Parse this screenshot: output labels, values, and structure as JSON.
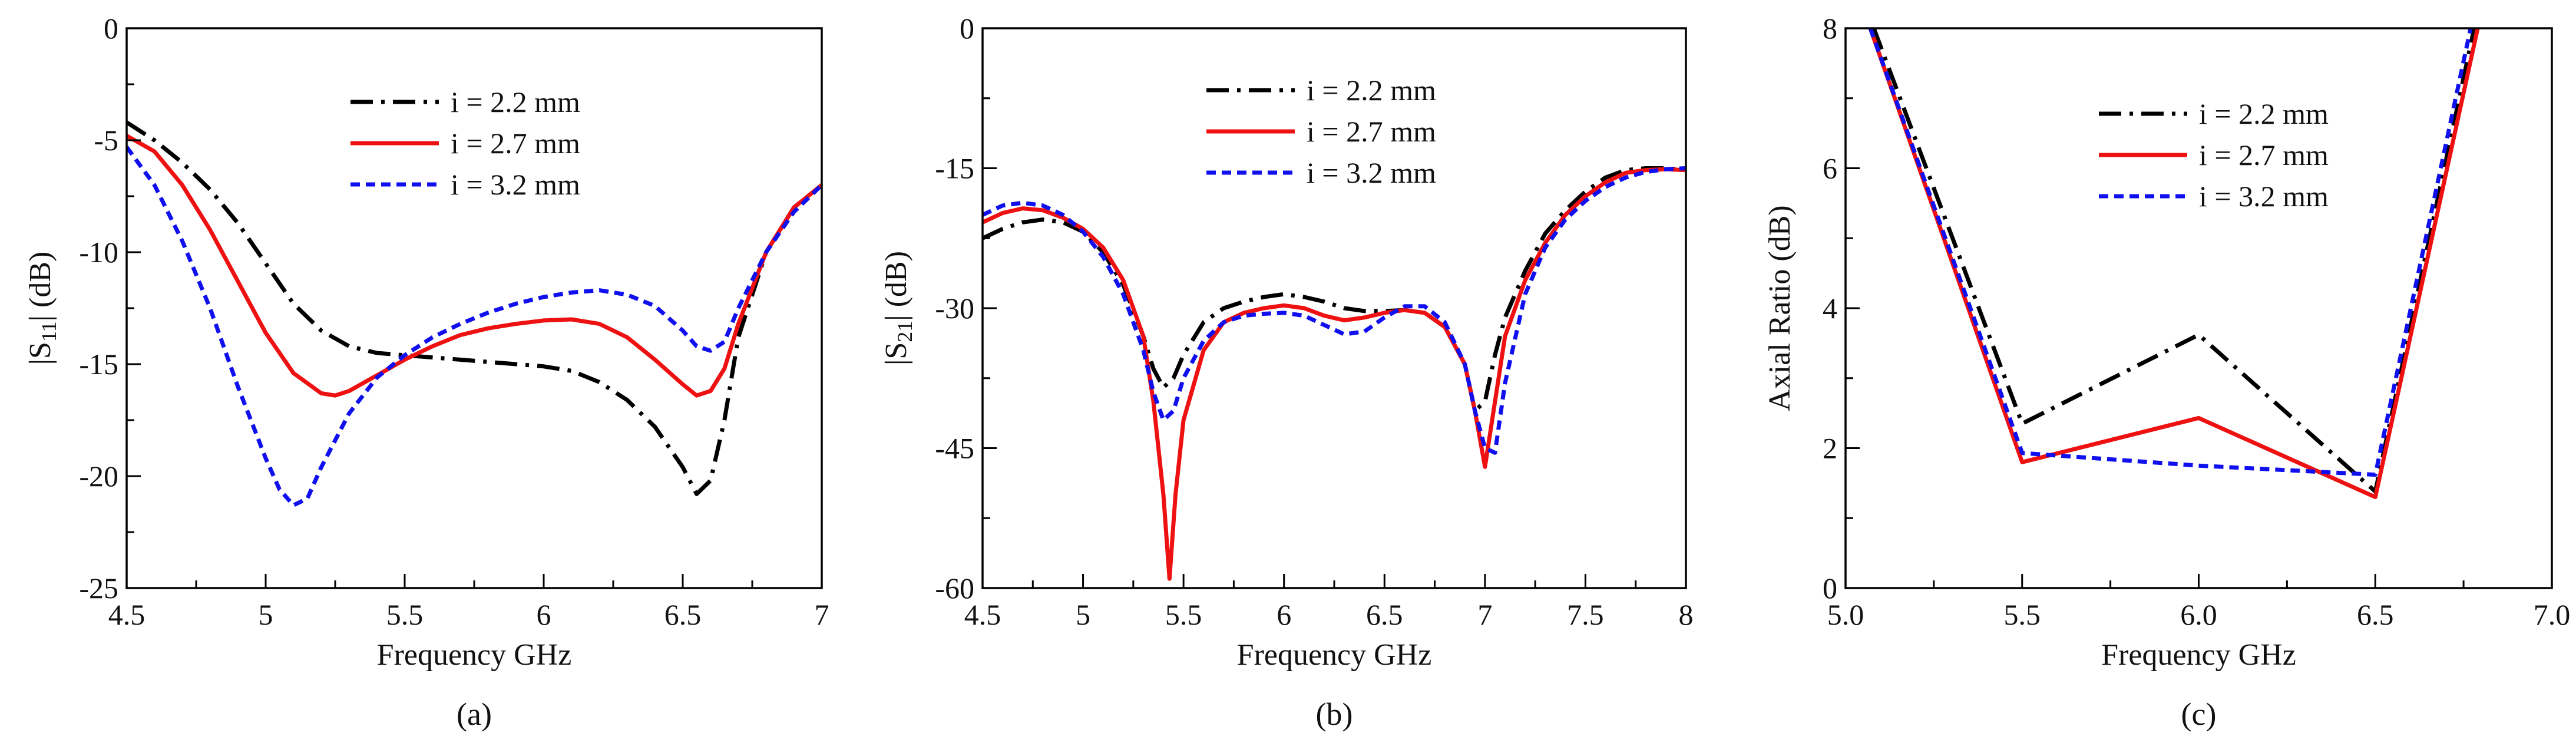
{
  "chart_data": [
    {
      "type": "line",
      "caption": "(a)",
      "xlabel": "Frequency GHz",
      "ylabel": "|S11| (dB)",
      "ylabel_base": "|S",
      "ylabel_sub": "11",
      "ylabel_tail": "| (dB)",
      "xlim": [
        4.5,
        7
      ],
      "ylim": [
        -25,
        0
      ],
      "xticks": [
        4.5,
        5,
        5.5,
        6,
        6.5,
        7
      ],
      "xtick_labels": [
        "4.5",
        "5",
        "5.5",
        "6",
        "6.5",
        "7"
      ],
      "yticks": [
        -25,
        -20,
        -15,
        -10,
        -5,
        0
      ],
      "ytick_labels": [
        "-25",
        "-20",
        "-15",
        "-10",
        "-5",
        "0"
      ],
      "legend": "top-center",
      "series": [
        {
          "name": "i = 2.2 mm",
          "style": "dashdot",
          "color": "#000000",
          "points": [
            [
              4.5,
              -4.2
            ],
            [
              4.6,
              -5.0
            ],
            [
              4.7,
              -6.0
            ],
            [
              4.8,
              -7.2
            ],
            [
              4.9,
              -8.7
            ],
            [
              5.0,
              -10.5
            ],
            [
              5.1,
              -12.3
            ],
            [
              5.2,
              -13.5
            ],
            [
              5.3,
              -14.2
            ],
            [
              5.4,
              -14.5
            ],
            [
              5.5,
              -14.6
            ],
            [
              5.6,
              -14.7
            ],
            [
              5.7,
              -14.8
            ],
            [
              5.8,
              -14.9
            ],
            [
              5.9,
              -15.0
            ],
            [
              6.0,
              -15.1
            ],
            [
              6.1,
              -15.3
            ],
            [
              6.2,
              -15.8
            ],
            [
              6.3,
              -16.6
            ],
            [
              6.4,
              -17.8
            ],
            [
              6.5,
              -19.6
            ],
            [
              6.55,
              -20.8
            ],
            [
              6.6,
              -20.2
            ],
            [
              6.65,
              -17.5
            ],
            [
              6.7,
              -13.8
            ],
            [
              6.8,
              -10.0
            ],
            [
              6.9,
              -8.0
            ],
            [
              7.0,
              -7.0
            ]
          ]
        },
        {
          "name": "i = 2.7 mm",
          "style": "solid",
          "color": "#ee1111",
          "points": [
            [
              4.5,
              -4.8
            ],
            [
              4.6,
              -5.5
            ],
            [
              4.7,
              -7.0
            ],
            [
              4.8,
              -9.0
            ],
            [
              4.9,
              -11.3
            ],
            [
              5.0,
              -13.6
            ],
            [
              5.1,
              -15.4
            ],
            [
              5.2,
              -16.3
            ],
            [
              5.25,
              -16.4
            ],
            [
              5.3,
              -16.2
            ],
            [
              5.4,
              -15.5
            ],
            [
              5.5,
              -14.8
            ],
            [
              5.6,
              -14.2
            ],
            [
              5.7,
              -13.7
            ],
            [
              5.8,
              -13.4
            ],
            [
              5.9,
              -13.2
            ],
            [
              6.0,
              -13.05
            ],
            [
              6.1,
              -13.0
            ],
            [
              6.2,
              -13.2
            ],
            [
              6.3,
              -13.8
            ],
            [
              6.4,
              -14.8
            ],
            [
              6.5,
              -15.9
            ],
            [
              6.55,
              -16.4
            ],
            [
              6.6,
              -16.2
            ],
            [
              6.65,
              -15.2
            ],
            [
              6.7,
              -13.2
            ],
            [
              6.8,
              -10.0
            ],
            [
              6.9,
              -8.0
            ],
            [
              7.0,
              -7.0
            ]
          ]
        },
        {
          "name": "i = 3.2 mm",
          "style": "dotted",
          "color": "#1010ee",
          "points": [
            [
              4.5,
              -5.3
            ],
            [
              4.6,
              -7.0
            ],
            [
              4.7,
              -9.5
            ],
            [
              4.8,
              -12.5
            ],
            [
              4.9,
              -16.0
            ],
            [
              5.0,
              -19.2
            ],
            [
              5.05,
              -20.6
            ],
            [
              5.1,
              -21.3
            ],
            [
              5.15,
              -21.0
            ],
            [
              5.2,
              -19.6
            ],
            [
              5.3,
              -17.2
            ],
            [
              5.4,
              -15.6
            ],
            [
              5.5,
              -14.6
            ],
            [
              5.6,
              -13.8
            ],
            [
              5.7,
              -13.2
            ],
            [
              5.8,
              -12.7
            ],
            [
              5.9,
              -12.3
            ],
            [
              6.0,
              -12.0
            ],
            [
              6.1,
              -11.8
            ],
            [
              6.2,
              -11.7
            ],
            [
              6.3,
              -11.9
            ],
            [
              6.4,
              -12.4
            ],
            [
              6.5,
              -13.5
            ],
            [
              6.55,
              -14.2
            ],
            [
              6.6,
              -14.4
            ],
            [
              6.65,
              -14.0
            ],
            [
              6.7,
              -12.5
            ],
            [
              6.8,
              -10.0
            ],
            [
              6.9,
              -8.2
            ],
            [
              7.0,
              -7.0
            ]
          ]
        }
      ]
    },
    {
      "type": "line",
      "caption": "(b)",
      "xlabel": "Frequency GHz",
      "ylabel": "|S21| (dB)",
      "ylabel_base": "|S",
      "ylabel_sub": "21",
      "ylabel_tail": "| (dB)",
      "xlim": [
        4.5,
        8
      ],
      "ylim": [
        -60,
        0
      ],
      "xticks": [
        4.5,
        5,
        5.5,
        6,
        6.5,
        7,
        7.5,
        8
      ],
      "xtick_labels": [
        "4.5",
        "5",
        "5.5",
        "6",
        "6.5",
        "7",
        "7.5",
        "8"
      ],
      "yticks": [
        -60,
        -45,
        -30,
        -15,
        0
      ],
      "ytick_labels": [
        "-60",
        "-45",
        "-30",
        "-15",
        "0"
      ],
      "legend": "top-center",
      "series": [
        {
          "name": "i = 2.2 mm",
          "style": "dashdot",
          "color": "#000000",
          "points": [
            [
              4.5,
              -22.5
            ],
            [
              4.6,
              -21.5
            ],
            [
              4.7,
              -20.8
            ],
            [
              4.8,
              -20.5
            ],
            [
              4.9,
              -20.8
            ],
            [
              5.0,
              -21.8
            ],
            [
              5.1,
              -24.0
            ],
            [
              5.2,
              -27.5
            ],
            [
              5.3,
              -33.0
            ],
            [
              5.35,
              -36.5
            ],
            [
              5.4,
              -38.5
            ],
            [
              5.45,
              -37.5
            ],
            [
              5.5,
              -35.0
            ],
            [
              5.6,
              -31.5
            ],
            [
              5.7,
              -30.0
            ],
            [
              5.8,
              -29.3
            ],
            [
              5.9,
              -28.8
            ],
            [
              6.0,
              -28.5
            ],
            [
              6.1,
              -28.8
            ],
            [
              6.2,
              -29.3
            ],
            [
              6.3,
              -30.0
            ],
            [
              6.4,
              -30.3
            ],
            [
              6.5,
              -30.3
            ],
            [
              6.6,
              -30.2
            ],
            [
              6.7,
              -30.5
            ],
            [
              6.8,
              -32.0
            ],
            [
              6.9,
              -36.0
            ],
            [
              6.95,
              -41.0
            ],
            [
              7.0,
              -40.0
            ],
            [
              7.05,
              -35.0
            ],
            [
              7.1,
              -31.0
            ],
            [
              7.2,
              -26.0
            ],
            [
              7.3,
              -22.0
            ],
            [
              7.4,
              -19.5
            ],
            [
              7.5,
              -17.5
            ],
            [
              7.6,
              -16.0
            ],
            [
              7.7,
              -15.2
            ],
            [
              7.8,
              -15.0
            ],
            [
              7.9,
              -15.0
            ],
            [
              8.0,
              -15.2
            ]
          ]
        },
        {
          "name": "i = 2.7 mm",
          "style": "solid",
          "color": "#ee1111",
          "points": [
            [
              4.5,
              -20.8
            ],
            [
              4.6,
              -19.8
            ],
            [
              4.7,
              -19.3
            ],
            [
              4.8,
              -19.5
            ],
            [
              4.9,
              -20.3
            ],
            [
              5.0,
              -21.5
            ],
            [
              5.1,
              -23.5
            ],
            [
              5.2,
              -27.0
            ],
            [
              5.3,
              -33.0
            ],
            [
              5.35,
              -40.0
            ],
            [
              5.4,
              -50.0
            ],
            [
              5.43,
              -59.0
            ],
            [
              5.46,
              -50.0
            ],
            [
              5.5,
              -42.0
            ],
            [
              5.6,
              -34.5
            ],
            [
              5.7,
              -31.5
            ],
            [
              5.8,
              -30.5
            ],
            [
              5.9,
              -30.0
            ],
            [
              6.0,
              -29.7
            ],
            [
              6.1,
              -30.0
            ],
            [
              6.2,
              -30.8
            ],
            [
              6.3,
              -31.3
            ],
            [
              6.4,
              -31.0
            ],
            [
              6.5,
              -30.5
            ],
            [
              6.6,
              -30.2
            ],
            [
              6.7,
              -30.5
            ],
            [
              6.8,
              -32.0
            ],
            [
              6.9,
              -36.0
            ],
            [
              6.95,
              -41.0
            ],
            [
              7.0,
              -47.0
            ],
            [
              7.05,
              -40.0
            ],
            [
              7.1,
              -33.0
            ],
            [
              7.2,
              -27.0
            ],
            [
              7.3,
              -23.0
            ],
            [
              7.4,
              -20.0
            ],
            [
              7.5,
              -18.0
            ],
            [
              7.6,
              -16.5
            ],
            [
              7.7,
              -15.5
            ],
            [
              7.8,
              -15.2
            ],
            [
              7.9,
              -15.1
            ],
            [
              8.0,
              -15.2
            ]
          ]
        },
        {
          "name": "i = 3.2 mm",
          "style": "dotted",
          "color": "#1010ee",
          "points": [
            [
              4.5,
              -20.0
            ],
            [
              4.6,
              -19.0
            ],
            [
              4.7,
              -18.7
            ],
            [
              4.8,
              -19.0
            ],
            [
              4.9,
              -20.0
            ],
            [
              5.0,
              -21.8
            ],
            [
              5.1,
              -24.5
            ],
            [
              5.2,
              -28.5
            ],
            [
              5.3,
              -34.5
            ],
            [
              5.35,
              -39.0
            ],
            [
              5.4,
              -42.0
            ],
            [
              5.45,
              -41.0
            ],
            [
              5.5,
              -37.5
            ],
            [
              5.6,
              -33.5
            ],
            [
              5.7,
              -31.5
            ],
            [
              5.8,
              -30.8
            ],
            [
              5.9,
              -30.6
            ],
            [
              6.0,
              -30.5
            ],
            [
              6.1,
              -30.8
            ],
            [
              6.2,
              -31.8
            ],
            [
              6.3,
              -32.8
            ],
            [
              6.4,
              -32.5
            ],
            [
              6.5,
              -31.0
            ],
            [
              6.6,
              -29.8
            ],
            [
              6.7,
              -29.8
            ],
            [
              6.8,
              -31.5
            ],
            [
              6.9,
              -36.0
            ],
            [
              6.95,
              -41.0
            ],
            [
              7.0,
              -45.0
            ],
            [
              7.05,
              -45.5
            ],
            [
              7.1,
              -38.0
            ],
            [
              7.2,
              -28.5
            ],
            [
              7.3,
              -23.5
            ],
            [
              7.4,
              -20.5
            ],
            [
              7.5,
              -18.5
            ],
            [
              7.6,
              -17.0
            ],
            [
              7.7,
              -16.0
            ],
            [
              7.8,
              -15.4
            ],
            [
              7.9,
              -15.1
            ],
            [
              8.0,
              -15.0
            ]
          ]
        }
      ]
    },
    {
      "type": "line",
      "caption": "(c)",
      "xlabel": "Frequency GHz",
      "ylabel": "Axial Ratio (dB)",
      "xlim": [
        5.0,
        7.0
      ],
      "ylim": [
        0,
        8
      ],
      "xticks": [
        5.0,
        5.5,
        6.0,
        6.5,
        7.0
      ],
      "xtick_labels": [
        "5.0",
        "5.5",
        "6.0",
        "6.5",
        "7.0"
      ],
      "yticks": [
        0,
        2,
        4,
        6,
        8
      ],
      "ytick_labels": [
        "0",
        "2",
        "4",
        "6",
        "8"
      ],
      "legend": "top-center",
      "series": [
        {
          "name": "i = 2.2 mm",
          "style": "dashdot",
          "color": "#000000",
          "points": [
            [
              5.08,
              8.0
            ],
            [
              5.5,
              2.35
            ],
            [
              6.0,
              3.62
            ],
            [
              6.5,
              1.38
            ],
            [
              6.78,
              8.0
            ]
          ]
        },
        {
          "name": "i = 2.7 mm",
          "style": "solid",
          "color": "#ee1111",
          "points": [
            [
              5.07,
              8.0
            ],
            [
              5.5,
              1.8
            ],
            [
              6.0,
              2.43
            ],
            [
              6.5,
              1.3
            ],
            [
              6.79,
              8.0
            ]
          ]
        },
        {
          "name": "i = 3.2 mm",
          "style": "dotted",
          "color": "#1010ee",
          "points": [
            [
              5.07,
              8.0
            ],
            [
              5.5,
              1.93
            ],
            [
              6.0,
              1.75
            ],
            [
              6.5,
              1.62
            ],
            [
              6.77,
              8.0
            ]
          ]
        }
      ]
    }
  ]
}
